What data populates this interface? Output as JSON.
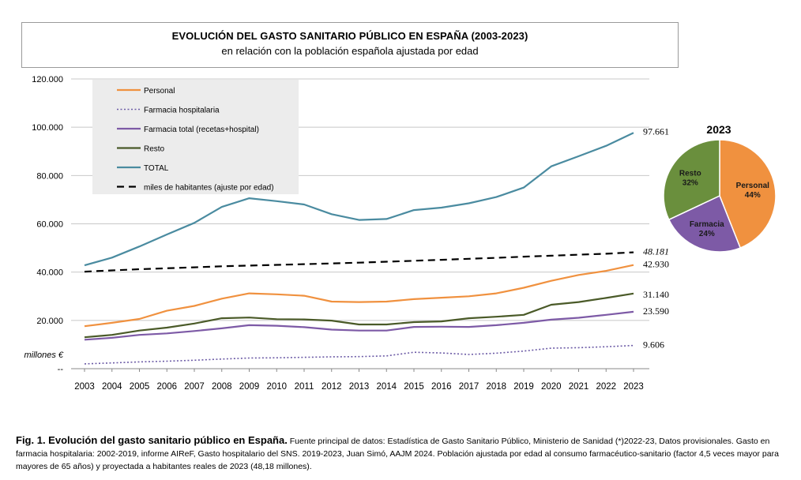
{
  "header": {
    "title": "EVOLUCIÓN DEL GASTO SANITARIO PÚBLICO EN ESPAÑA  (2003-2023)",
    "subtitle": "en relación con la población española ajustada por edad"
  },
  "caption": {
    "lead": "Fig. 1. Evolución del gasto sanitario público en España.",
    "text": " Fuente principal de datos: Estadística de Gasto Sanitario Público, Ministerio de Sanidad (*)2022-23, Datos provisionales. Gasto en farmacia hospitalaria: 2002-2019, informe AIReF, Gasto hospitalario del SNS. 2019-2023, Juan Simó, AAJM 2024. Población ajustada por edad al consumo farmacéutico-sanitario (factor 4,5 veces mayor para mayores de 65 años) y proyectada a habitantes reales de 2023 (48,18 millones)."
  },
  "chart_data": [
    {
      "type": "line",
      "ylabel": "millones €",
      "ylim": [
        0,
        120000
      ],
      "y_ticks": [
        {
          "value": 0,
          "label": "--"
        },
        {
          "value": 20000,
          "label": "20.000"
        },
        {
          "value": 40000,
          "label": "40.000"
        },
        {
          "value": 60000,
          "label": "60.000"
        },
        {
          "value": 80000,
          "label": "80.000"
        },
        {
          "value": 100000,
          "label": "100.000"
        },
        {
          "value": 120000,
          "label": "120.000"
        }
      ],
      "grid": true,
      "legend_position": "top-left",
      "x": [
        "2003",
        "2004",
        "2005",
        "2006",
        "2007",
        "2008",
        "2009",
        "2010",
        "2011",
        "2012",
        "2013",
        "2014",
        "2015",
        "2016",
        "2017",
        "2018",
        "2019",
        "2020",
        "2021",
        "2022",
        "2023"
      ],
      "series": [
        {
          "name": "Personal",
          "color": "#F0913F",
          "style": "solid",
          "values": [
            17600,
            19000,
            20600,
            24000,
            26000,
            29000,
            31200,
            30800,
            30200,
            27800,
            27600,
            27800,
            28800,
            29400,
            30000,
            31200,
            33500,
            36400,
            38800,
            40500,
            42930
          ],
          "end_label": "42.930"
        },
        {
          "name": "Farmacia hospitalaria",
          "color": "#6C5BA6",
          "style": "dotted",
          "values": [
            2000,
            2400,
            2800,
            3100,
            3500,
            4000,
            4400,
            4500,
            4700,
            4900,
            5000,
            5300,
            6800,
            6500,
            5900,
            6400,
            7300,
            8500,
            8700,
            9100,
            9606
          ],
          "end_label": "9.606"
        },
        {
          "name": "Farmacia total (recetas+hospital)",
          "color": "#7D5AA6",
          "style": "solid",
          "values": [
            12000,
            12800,
            14000,
            14600,
            15600,
            16700,
            18000,
            17800,
            17200,
            16200,
            15800,
            15800,
            17300,
            17400,
            17300,
            18000,
            19000,
            20300,
            21100,
            22300,
            23590
          ],
          "end_label": "23.590"
        },
        {
          "name": "Resto",
          "color": "#4A5A28",
          "style": "solid",
          "values": [
            13000,
            14000,
            15800,
            17000,
            18700,
            20900,
            21200,
            20500,
            20400,
            19900,
            18300,
            18300,
            19300,
            19600,
            20900,
            21500,
            22300,
            26500,
            27600,
            29300,
            31140
          ],
          "end_label": "31.140"
        },
        {
          "name": "TOTAL",
          "color": "#4A8BA0",
          "style": "solid",
          "values": [
            42800,
            46000,
            50600,
            55600,
            60400,
            67000,
            70600,
            69400,
            68000,
            64000,
            61600,
            62000,
            65700,
            66700,
            68500,
            71100,
            75000,
            83800,
            88000,
            92300,
            97661
          ],
          "end_label": "97.661"
        },
        {
          "name": "miles de habitantes (ajuste por edad)",
          "color": "#000000",
          "style": "dashed",
          "values": [
            40200,
            40700,
            41200,
            41600,
            42000,
            42400,
            42700,
            43000,
            43300,
            43600,
            43900,
            44300,
            44700,
            45100,
            45500,
            45900,
            46400,
            46800,
            47200,
            47600,
            48181
          ],
          "end_label": "48.181"
        }
      ]
    },
    {
      "type": "pie",
      "title": "2023",
      "slices": [
        {
          "label": "Personal",
          "value": 44,
          "pct_label": "44%",
          "color": "#F0913F"
        },
        {
          "label": "Farmacia",
          "value": 24,
          "pct_label": "24%",
          "color": "#7D5AA6"
        },
        {
          "label": "Resto",
          "value": 32,
          "pct_label": "32%",
          "color": "#6A8F3D"
        }
      ]
    }
  ]
}
